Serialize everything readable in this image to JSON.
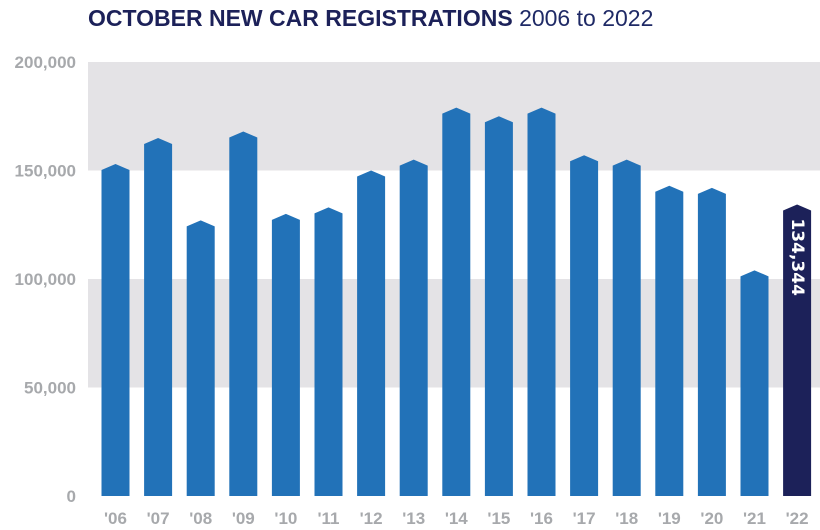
{
  "title": {
    "main": "OCTOBER NEW CAR REGISTRATIONS",
    "range": "2006 to 2022"
  },
  "chart_data": {
    "type": "bar",
    "title": "OCTOBER NEW CAR REGISTRATIONS 2006 to 2022",
    "categories": [
      "'06",
      "'07",
      "'08",
      "'09",
      "'10",
      "'11",
      "'12",
      "'13",
      "'14",
      "'15",
      "'16",
      "'17",
      "'18",
      "'19",
      "'20",
      "'21",
      "'22"
    ],
    "values": [
      153000,
      165000,
      127000,
      168000,
      130000,
      133000,
      150000,
      155000,
      179000,
      175000,
      179000,
      157000,
      155000,
      143000,
      142000,
      104000,
      134344
    ],
    "highlight_index": 16,
    "data_labels": [
      {
        "index": 16,
        "text": "134,344"
      }
    ],
    "ylim": [
      0,
      200000
    ],
    "yticks": [
      0,
      50000,
      100000,
      150000,
      200000
    ],
    "ytick_labels": [
      "0",
      "50,000",
      "100,000",
      "150,000",
      "200,000"
    ],
    "xlabel": "",
    "ylabel": "",
    "grid": "alternating horizontal bands",
    "colors": {
      "bar": "#2272b8",
      "highlight": "#1c2159",
      "band": "#e4e3e6",
      "tick_text": "#a7a9ac",
      "title": "#1c2159"
    }
  }
}
